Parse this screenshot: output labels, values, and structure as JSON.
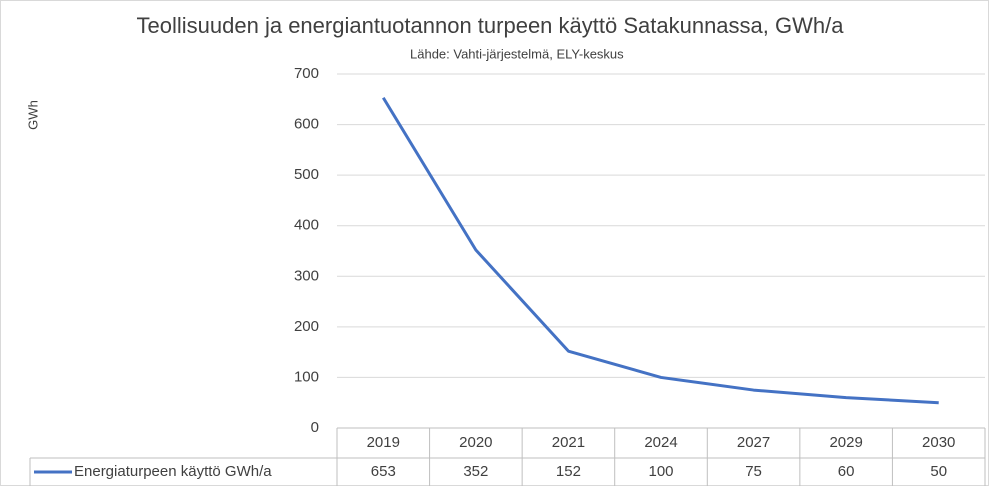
{
  "chart_data": {
    "type": "line",
    "title": "Teollisuuden ja energiantuotannon turpeen käyttö Satakunnassa, GWh/a",
    "subtitle": "Lähde: Vahti-järjestelmä, ELY-keskus",
    "y_label": "GWh",
    "categories": [
      "2019",
      "2020",
      "2021",
      "2024",
      "2027",
      "2029",
      "2030"
    ],
    "series": [
      {
        "name": "Energiaturpeen käyttö GWh/a",
        "color": "#4472c4",
        "values": [
          653,
          352,
          152,
          100,
          75,
          60,
          50
        ]
      }
    ],
    "ylim": [
      0,
      700
    ],
    "yticks": [
      0,
      100,
      200,
      300,
      400,
      500,
      600,
      700
    ],
    "grid": true
  }
}
